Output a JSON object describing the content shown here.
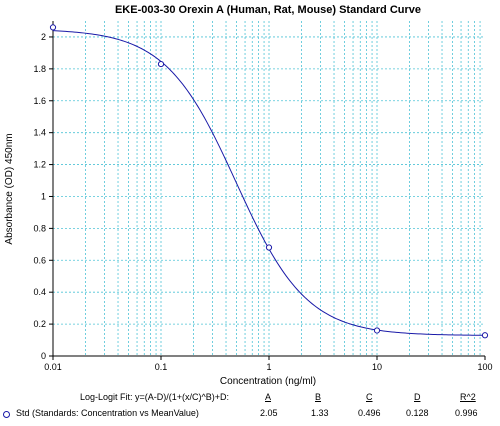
{
  "chart_data": {
    "type": "scatter",
    "title": "EKE-003-30 Orexin A (Human, Rat, Mouse) Standard Curve",
    "xlabel": "Concentration (ng/ml)",
    "ylabel": "Absorbance (OD) 450nm",
    "x_scale": "log",
    "xlim": [
      0.01,
      100
    ],
    "ylim": [
      0,
      2.1
    ],
    "grid": true,
    "x_ticks": [
      "0.01",
      "0.1",
      "1",
      "10",
      "100"
    ],
    "y_ticks": [
      "0",
      "0.2",
      "0.4",
      "0.6",
      "0.8",
      "1",
      "1.2",
      "1.4",
      "1.6",
      "1.8",
      "2"
    ],
    "series": [
      {
        "name": "Std (Standards: Concentration vs MeanValue)",
        "color": "#1a1aa8",
        "marker": "open-circle",
        "x": [
          0.01,
          0.1,
          1,
          10,
          100
        ],
        "y": [
          2.06,
          1.83,
          0.68,
          0.16,
          0.13
        ]
      }
    ],
    "fit": {
      "model_label": "Log-Logit Fit: y=(A-D)/(1+(x/C)^B)+D:",
      "color": "#1a1aa8",
      "A": 2.05,
      "B": 1.33,
      "C": 0.496,
      "D": 0.128
    }
  },
  "legend": {
    "fit_label": "Log-Logit Fit: y=(A-D)/(1+(x/C)^B)+D:",
    "headers": [
      "A",
      "B",
      "C",
      "D",
      "R^2"
    ],
    "row_label": "Std (Standards: Concentration vs MeanValue)",
    "values": [
      "2.05",
      "1.33",
      "0.496",
      "0.128",
      "0.996"
    ]
  },
  "colors": {
    "grid": "#4ec3d6",
    "curve": "#1a1aa8",
    "axis": "#000000"
  }
}
